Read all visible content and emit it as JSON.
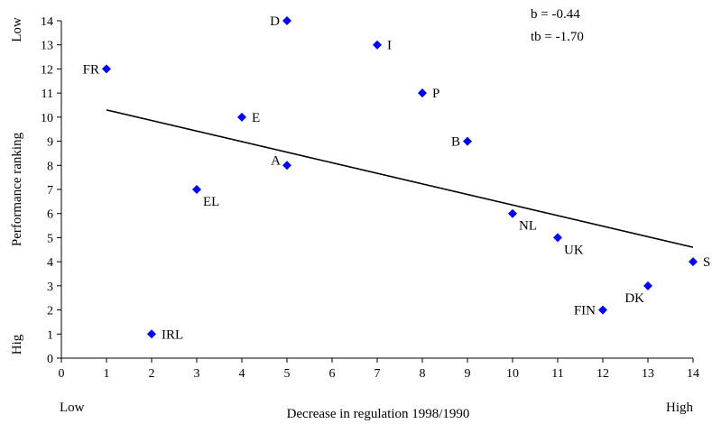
{
  "chart_data": {
    "type": "scatter",
    "title": "",
    "xlabel": "Decrease in regulation 1998/1990",
    "ylabel": "Performance ranking",
    "x_end_labels": {
      "low": "Low",
      "high": "High"
    },
    "y_end_labels": {
      "low": "Low",
      "high": "Hig"
    },
    "xlim": [
      0,
      14
    ],
    "ylim": [
      0,
      14
    ],
    "x_ticks": [
      0,
      1,
      2,
      3,
      4,
      5,
      6,
      7,
      8,
      9,
      10,
      11,
      12,
      13,
      14
    ],
    "y_ticks": [
      0,
      1,
      2,
      3,
      4,
      5,
      6,
      7,
      8,
      9,
      10,
      11,
      12,
      13,
      14
    ],
    "grid": false,
    "marker_color": "#0000ff",
    "points": [
      {
        "label": "FR",
        "x": 1,
        "y": 12,
        "label_side": "left"
      },
      {
        "label": "IRL",
        "x": 2,
        "y": 1,
        "label_side": "right"
      },
      {
        "label": "EL",
        "x": 3,
        "y": 7,
        "label_side": "below-right"
      },
      {
        "label": "E",
        "x": 4,
        "y": 10,
        "label_side": "right"
      },
      {
        "label": "D",
        "x": 5,
        "y": 14,
        "label_side": "left"
      },
      {
        "label": "A",
        "x": 5,
        "y": 8,
        "label_side": "above-left"
      },
      {
        "label": "I",
        "x": 7,
        "y": 13,
        "label_side": "right"
      },
      {
        "label": "P",
        "x": 8,
        "y": 11,
        "label_side": "right"
      },
      {
        "label": "B",
        "x": 9,
        "y": 9,
        "label_side": "left"
      },
      {
        "label": "NL",
        "x": 10,
        "y": 6,
        "label_side": "below-right"
      },
      {
        "label": "UK",
        "x": 11,
        "y": 5,
        "label_side": "below-right"
      },
      {
        "label": "FIN",
        "x": 12,
        "y": 2,
        "label_side": "left"
      },
      {
        "label": "DK",
        "x": 13,
        "y": 3,
        "label_side": "below-left"
      },
      {
        "label": "S",
        "x": 14,
        "y": 4,
        "label_side": "right"
      }
    ],
    "trendline": {
      "x": [
        1,
        14
      ],
      "y": [
        10.3,
        4.6
      ],
      "color": "#000000"
    },
    "annotations": [
      "b = -0.44",
      "tb = -1.70"
    ]
  }
}
